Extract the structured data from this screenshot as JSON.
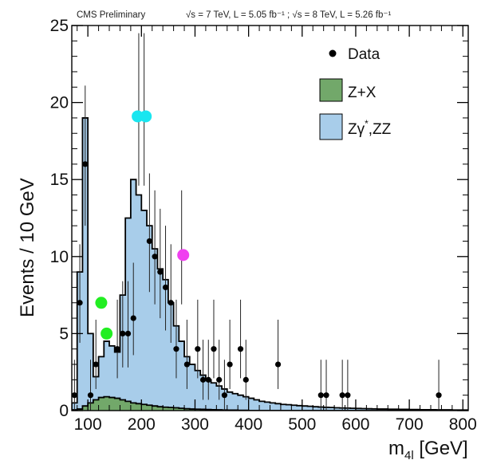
{
  "header": {
    "experiment": "CMS Preliminary",
    "lumi": "√s = 7 TeV, L = 5.05 fb⁻¹ ; √s = 8 TeV, L = 5.26 fb⁻¹"
  },
  "chart_data": {
    "type": "bar",
    "xlabel": "m4l [GeV]",
    "xlabel_main": "m",
    "xlabel_sub": "4l",
    "xlabel_unit": " [GeV]",
    "ylabel": "Events / 10 GeV",
    "xlim": [
      70,
      810
    ],
    "ylim": [
      0,
      25
    ],
    "x_ticks": [
      100,
      200,
      300,
      400,
      500,
      600,
      700,
      800
    ],
    "y_ticks": [
      0,
      5,
      10,
      15,
      20,
      25
    ],
    "legend": [
      {
        "label": "Data",
        "marker": "dot",
        "color": "#000000"
      },
      {
        "label": "Z+X",
        "marker": "box",
        "color": "#72a86a"
      },
      {
        "label": "Zγ*,ZZ",
        "marker": "box",
        "color": "#a8cdea",
        "main": "Zγ",
        "sup": "*",
        "tail": ",ZZ"
      }
    ],
    "legend_position": "top-right",
    "bin_width": 10,
    "series": [
      {
        "name": "Zγ*,ZZ",
        "color": "#a8cdea",
        "edge_color": "#000000",
        "bin_edges": [
          70,
          80,
          90,
          100,
          110,
          120,
          130,
          140,
          150,
          160,
          170,
          180,
          190,
          200,
          210,
          220,
          230,
          240,
          250,
          260,
          270,
          280,
          290,
          300,
          310,
          320,
          330,
          340,
          350,
          360,
          370,
          380,
          390,
          400,
          410,
          420,
          430,
          440,
          450,
          460,
          470,
          480,
          490,
          500,
          510,
          520,
          530,
          540,
          550,
          560,
          570,
          580,
          590,
          600,
          610,
          620,
          630,
          640,
          650,
          660,
          670,
          680,
          690,
          700,
          710,
          720,
          730,
          740,
          750,
          760,
          770,
          780,
          790,
          800,
          810
        ],
        "values": [
          0.5,
          9.0,
          19.0,
          5.0,
          2.2,
          3.5,
          4.5,
          4.2,
          3.8,
          7.5,
          12.5,
          15.0,
          14.0,
          13.0,
          12.0,
          10.5,
          9.2,
          8.5,
          7.0,
          5.5,
          4.5,
          3.5,
          3.0,
          2.6,
          2.3,
          2.0,
          1.8,
          1.6,
          1.4,
          1.2,
          1.1,
          1.0,
          0.9,
          0.8,
          0.7,
          0.6,
          0.55,
          0.5,
          0.45,
          0.4,
          0.38,
          0.35,
          0.32,
          0.3,
          0.28,
          0.25,
          0.23,
          0.21,
          0.2,
          0.18,
          0.17,
          0.16,
          0.15,
          0.14,
          0.13,
          0.12,
          0.11,
          0.1,
          0.1,
          0.09,
          0.09,
          0.08,
          0.08,
          0.07,
          0.07,
          0.06,
          0.06,
          0.06,
          0.05,
          0.05,
          0.05,
          0.04,
          0.04,
          0.04
        ]
      },
      {
        "name": "Z+X",
        "color": "#72a86a",
        "edge_color": "#000000",
        "bin_edges": [
          70,
          80,
          90,
          100,
          110,
          120,
          130,
          140,
          150,
          160,
          170,
          180,
          190,
          200,
          210,
          220,
          230,
          240,
          250,
          260,
          270,
          280,
          290,
          300,
          310,
          320,
          330,
          340,
          350,
          360,
          370,
          380,
          390,
          400
        ],
        "values": [
          0.05,
          0.1,
          0.3,
          0.5,
          0.7,
          0.85,
          0.9,
          0.85,
          0.8,
          0.7,
          0.6,
          0.5,
          0.45,
          0.4,
          0.35,
          0.3,
          0.25,
          0.22,
          0.2,
          0.18,
          0.15,
          0.12,
          0.1,
          0.09,
          0.08,
          0.07,
          0.06,
          0.05,
          0.04,
          0.03,
          0.03,
          0.02,
          0.02,
          0.01
        ]
      }
    ],
    "data_points": [
      {
        "x": 75,
        "y": 1,
        "err_lo": 1,
        "err_hi": 2.3
      },
      {
        "x": 85,
        "y": 7,
        "err_lo": 2.6,
        "err_hi": 3.8
      },
      {
        "x": 95,
        "y": 16,
        "err_lo": 4,
        "err_hi": 5.1
      },
      {
        "x": 105,
        "y": 1,
        "err_lo": 1,
        "err_hi": 2.3
      },
      {
        "x": 115,
        "y": 3,
        "err_lo": 1.6,
        "err_hi": 2.9
      },
      {
        "x": 155,
        "y": 4,
        "err_lo": 1.9,
        "err_hi": 3.2
      },
      {
        "x": 165,
        "y": 5,
        "err_lo": 2.2,
        "err_hi": 3.4
      },
      {
        "x": 175,
        "y": 5,
        "err_lo": 2.2,
        "err_hi": 3.4
      },
      {
        "x": 185,
        "y": 6,
        "err_lo": 2.4,
        "err_hi": 3.6
      },
      {
        "x": 195,
        "y": 19,
        "err_lo": 4.4,
        "err_hi": 5.5
      },
      {
        "x": 205,
        "y": 19,
        "err_lo": 4.4,
        "err_hi": 5.5
      },
      {
        "x": 215,
        "y": 11,
        "err_lo": 3.3,
        "err_hi": 4.4
      },
      {
        "x": 225,
        "y": 10,
        "err_lo": 3.1,
        "err_hi": 4.3
      },
      {
        "x": 235,
        "y": 9,
        "err_lo": 3.0,
        "err_hi": 4.1
      },
      {
        "x": 245,
        "y": 8,
        "err_lo": 2.8,
        "err_hi": 4.0
      },
      {
        "x": 255,
        "y": 7,
        "err_lo": 2.6,
        "err_hi": 3.8
      },
      {
        "x": 265,
        "y": 4,
        "err_lo": 1.9,
        "err_hi": 3.2
      },
      {
        "x": 275,
        "y": 10,
        "err_lo": 3.1,
        "err_hi": 4.3
      },
      {
        "x": 285,
        "y": 3,
        "err_lo": 1.6,
        "err_hi": 2.9
      },
      {
        "x": 305,
        "y": 4,
        "err_lo": 1.9,
        "err_hi": 3.2
      },
      {
        "x": 315,
        "y": 2,
        "err_lo": 1.3,
        "err_hi": 2.6
      },
      {
        "x": 325,
        "y": 2,
        "err_lo": 1.3,
        "err_hi": 2.6
      },
      {
        "x": 335,
        "y": 4,
        "err_lo": 1.9,
        "err_hi": 3.2
      },
      {
        "x": 345,
        "y": 2,
        "err_lo": 1.3,
        "err_hi": 2.6
      },
      {
        "x": 355,
        "y": 1,
        "err_lo": 1,
        "err_hi": 2.3
      },
      {
        "x": 365,
        "y": 3,
        "err_lo": 1.6,
        "err_hi": 2.9
      },
      {
        "x": 385,
        "y": 4,
        "err_lo": 1.9,
        "err_hi": 3.2
      },
      {
        "x": 395,
        "y": 2,
        "err_lo": 1.3,
        "err_hi": 2.6
      },
      {
        "x": 455,
        "y": 3,
        "err_lo": 1.6,
        "err_hi": 2.9
      },
      {
        "x": 535,
        "y": 1,
        "err_lo": 1,
        "err_hi": 2.3
      },
      {
        "x": 545,
        "y": 1,
        "err_lo": 1,
        "err_hi": 2.3
      },
      {
        "x": 575,
        "y": 1,
        "err_lo": 1,
        "err_hi": 2.3
      },
      {
        "x": 585,
        "y": 1,
        "err_lo": 1,
        "err_hi": 2.3
      },
      {
        "x": 755,
        "y": 1,
        "err_lo": 1,
        "err_hi": 2.3
      }
    ],
    "highlight_markers": [
      {
        "x": 125,
        "y": 7,
        "color": "#22ee22"
      },
      {
        "x": 135,
        "y": 5,
        "color": "#22ee22"
      },
      {
        "x": 193,
        "y": 19.1,
        "color": "#19e6f0"
      },
      {
        "x": 208,
        "y": 19.1,
        "color": "#19e6f0"
      },
      {
        "x": 278,
        "y": 10.1,
        "color": "#f040f0"
      }
    ]
  }
}
